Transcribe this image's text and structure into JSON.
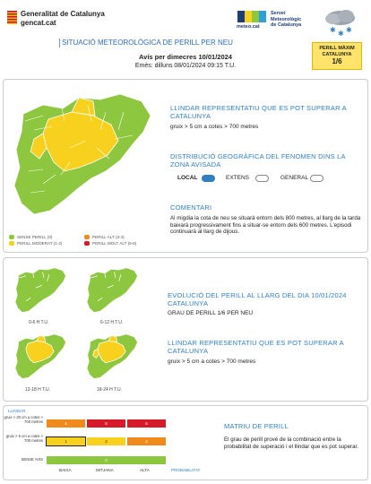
{
  "header": {
    "org_name": "Generalitat de Catalunya",
    "org_site": "gencat.cat",
    "meteo_label": "meteo.cat",
    "smc_name": [
      "Servei",
      "Meteorològic",
      "de Catalunya"
    ],
    "title": "SITUACIÓ METEOROLÒGICA DE PERILL PER NEU",
    "avis": "Avís per dimecres 10/01/2024",
    "emes": "Emès: dilluns 08/01/2024 09:15 T.U.",
    "max_level": {
      "line1": "PERILL MÀXIM",
      "line2": "CATALUNYA",
      "value": "1/6",
      "color": "#ffe36b"
    }
  },
  "panel1": {
    "threshold_title": "LLINDAR REPRESENTATIU QUE ES POT SUPERAR A CATALUNYA",
    "threshold_value": "gruix > 5 cm a cotes > 700 metres",
    "distribution_title": "DISTRIBUCIÓ GEOGRÀFICA DEL FENOMEN DINS LA ZONA AVISADA",
    "distribution_options": [
      {
        "label": "LOCAL",
        "selected": true
      },
      {
        "label": "EXTENS",
        "selected": false
      },
      {
        "label": "GENERAL",
        "selected": false
      }
    ],
    "comment_title": "COMENTARI",
    "comment": "Al migdia la cota de neu se situarà entorn dels 800 metres, al llarg de la tarda baixarà progressivament fins a situar-se entorn dels 600 metres. L'episodi continuarà al llarg de dijous.",
    "legend": [
      {
        "label": "SENSE PERILL (0)",
        "color": "#8dc63f"
      },
      {
        "label": "PERILL MODERAT (1-2)",
        "color": "#f7d11e"
      },
      {
        "label": "PERILL ALT (3-4)",
        "color": "#f08a1d"
      },
      {
        "label": "PERILL MOLT ALT (5-6)",
        "color": "#d7192a"
      }
    ]
  },
  "panel2": {
    "map_captions": [
      "0-6 H T.U.",
      "6-12 H T.U.",
      "12-18 H T.U.",
      "18-24 H T.U."
    ],
    "evolution_title": "EVOLUCIÓ DEL PERILL AL LLARG DEL DIA 10/01/2024 CATALUNYA",
    "evolution_value": "GRAU DE PERILL 1/6 PER NEU",
    "threshold_title": "LLINDAR REPRESENTATIU QUE ES POT SUPERAR A CATALUNYA",
    "threshold_value": "gruix > 5 cm a cotes > 700 metres"
  },
  "matrix": {
    "title": "MATRIU DE PERILL",
    "description": "El grau de perill prové de la combinació entre la probabilitat de superació i el llindar que es pot superar.",
    "llindar_label": "LLINDAR",
    "row_labels": [
      "gruix > 20 cm a cotes > 700 metres",
      "gruix > 5 cm a cotes > 700 metres",
      "SENSE AVÍS"
    ],
    "col_labels": [
      "BAIXA",
      "MITJANA",
      "ALTA"
    ],
    "axis_label": "PROBABILITAT",
    "rows": [
      {
        "values": [
          "4",
          "5",
          "6"
        ],
        "colors": [
          "#f08a1d",
          "#d7192a",
          "#d7192a"
        ]
      },
      {
        "values": [
          "1",
          "2",
          "3"
        ],
        "colors": [
          "#f7d11e",
          "#f7d11e",
          "#f08a1d"
        ]
      },
      {
        "values": [
          "0"
        ],
        "colors": [
          "#8dc63f"
        ]
      }
    ],
    "highlighted": "1"
  }
}
